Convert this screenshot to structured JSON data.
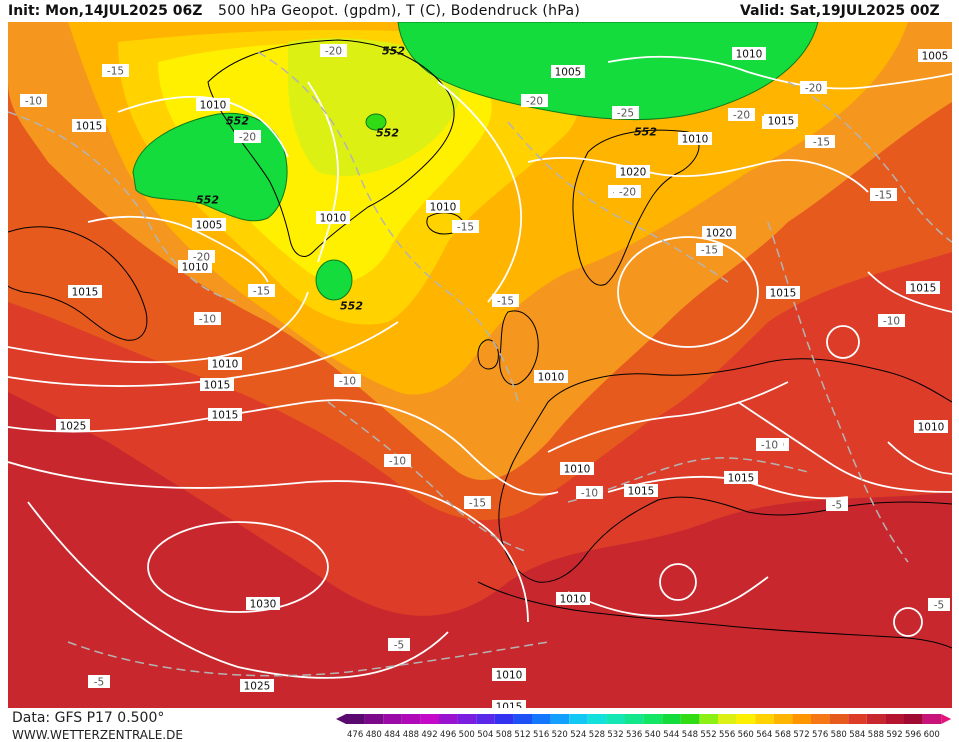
{
  "header": {
    "init": "Init: Mon,14JUL2025 06Z",
    "title": "500 hPa Geopot. (gpdm), T (C), Bodendruck (hPa)",
    "valid": "Valid: Sat,19JUL2025 00Z"
  },
  "footer": {
    "source": "Data: GFS P17 0.500°",
    "site": "WWW.WETTERZENTRALE.DE"
  },
  "legend": {
    "values": [
      "476",
      "480",
      "484",
      "488",
      "492",
      "496",
      "500",
      "504",
      "508",
      "512",
      "516",
      "520",
      "524",
      "528",
      "532",
      "536",
      "540",
      "544",
      "548",
      "552",
      "556",
      "560",
      "564",
      "568",
      "572",
      "576",
      "580",
      "584",
      "588",
      "592",
      "596",
      "600"
    ],
    "colors": [
      "#5a0a6e",
      "#7a0a8a",
      "#9a0aa6",
      "#b00ab8",
      "#c40ac8",
      "#9a14d0",
      "#7a1ee0",
      "#5a28e8",
      "#3232f0",
      "#1e50f5",
      "#1478ff",
      "#14a0ff",
      "#14c8f5",
      "#14e0dc",
      "#14e6b4",
      "#14e68c",
      "#14e664",
      "#14dc3c",
      "#32dc14",
      "#8cf014",
      "#dcf014",
      "#fff000",
      "#ffd200",
      "#ffb400",
      "#ff9600",
      "#f57814",
      "#e65a1e",
      "#dc3c28",
      "#c8282d",
      "#b4142d",
      "#a00a32",
      "#c8147a"
    ],
    "arrow_left": "#5a0a6e",
    "arrow_right": "#e6147a"
  },
  "map": {
    "geopotential_labels": [
      "552",
      "552",
      "552",
      "552",
      "552",
      "552"
    ],
    "pressure_labels": [
      "1010",
      "1015",
      "1005",
      "1010",
      "1010",
      "1015",
      "1010",
      "1010",
      "1015",
      "1020",
      "1025",
      "1030",
      "1025",
      "1015",
      "1010",
      "1010",
      "1010",
      "1015",
      "1015",
      "1020",
      "1010",
      "1015",
      "1015",
      "1010",
      "1005",
      "1005",
      "1015",
      "1015",
      "1010",
      "1010",
      "1015"
    ],
    "temperature_labels": [
      "-15",
      "-10",
      "-15",
      "-20",
      "-20",
      "-15",
      "-10",
      "-20",
      "-25",
      "-20",
      "-15",
      "-15",
      "-15",
      "-10",
      "-10",
      "-15",
      "-15",
      "-10",
      "-10",
      "-15",
      "-10",
      "-5",
      "-5",
      "-5",
      "-5",
      "-20",
      "-10",
      "-20",
      "-15",
      "-15",
      "-20"
    ],
    "colors": {
      "green": "#14dc3c",
      "yellow": "#ffd200",
      "orange": "#f5961e",
      "red": "#dc3c28",
      "darkred": "#b4142d",
      "crimson": "#a00a3c",
      "isobar": "#ffffff",
      "isotherm": "#b4b4b4",
      "coast": "#000000"
    }
  }
}
